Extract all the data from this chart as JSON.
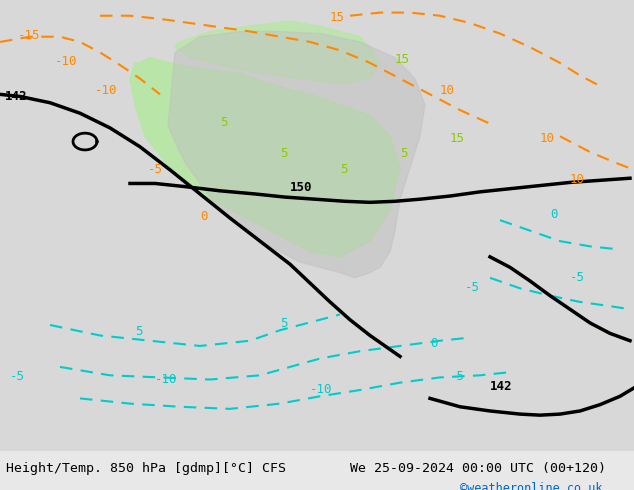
{
  "title_left": "Height/Temp. 850 hPa [gdmp][°C] CFS",
  "title_right": "We 25-09-2024 00:00 UTC (00+120)",
  "credit": "©weatheronline.co.uk",
  "bg_color": "#e8e8e8",
  "land_color": "#c8c8c8",
  "sea_color": "#e8e8e8",
  "green_fill_color": "#aae6aa",
  "bottom_bar_color": "#f0f0f0",
  "font_color": "#000000",
  "credit_color": "#0066cc",
  "figsize": [
    6.34,
    4.9
  ],
  "dpi": 100
}
